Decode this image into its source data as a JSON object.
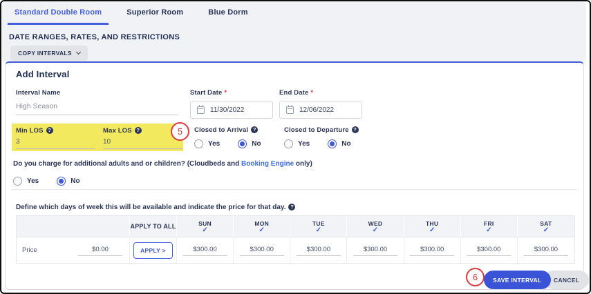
{
  "colors": {
    "accent": "#3d58d7",
    "highlight": "#f3e95f",
    "annotation_red": "#dd3a3c"
  },
  "ui": {
    "required_marker": "*",
    "help_glyph": "?",
    "check_glyph": "✓"
  },
  "tabs": [
    {
      "label": "Standard Double Room",
      "active": true
    },
    {
      "label": "Superior Room",
      "active": false
    },
    {
      "label": "Blue Dorm",
      "active": false
    }
  ],
  "header": {
    "section_title": "DATE RANGES, RATES, AND RESTRICTIONS",
    "copy_intervals_label": "COPY INTERVALS"
  },
  "panel": {
    "title": "Add Interval",
    "interval_name": {
      "label": "Interval Name",
      "value": "High Season"
    },
    "start_date": {
      "label": "Start Date",
      "value": "11/30/2022"
    },
    "end_date": {
      "label": "End Date",
      "value": "12/06/2022"
    },
    "min_los": {
      "label": "Min LOS",
      "value": "3"
    },
    "max_los": {
      "label": "Max LOS",
      "value": "10"
    },
    "closed_to_arrival": {
      "label": "Closed to Arrival",
      "yes": "Yes",
      "no": "No",
      "selected": "No"
    },
    "closed_to_departure": {
      "label": "Closed to Departure",
      "yes": "Yes",
      "no": "No",
      "selected": "No"
    },
    "extra_charge_question": {
      "text_before": "Do you charge for additional adults and or children? (Cloudbeds and ",
      "link_text": "Booking Engine",
      "text_after": " only)",
      "yes": "Yes",
      "no": "No",
      "selected": "No"
    },
    "days_note": "Define which days of week this will be available and indicate the price for that day.",
    "rate_table": {
      "apply_to_all_header": "APPLY TO ALL",
      "price_row_label": "Price",
      "base_price": "$0.00",
      "apply_button_label": "APPLY >",
      "days": [
        {
          "label": "SUN",
          "checked": true,
          "price": "$300.00"
        },
        {
          "label": "MON",
          "checked": true,
          "price": "$300.00"
        },
        {
          "label": "TUE",
          "checked": true,
          "price": "$300.00"
        },
        {
          "label": "WED",
          "checked": true,
          "price": "$300.00"
        },
        {
          "label": "THU",
          "checked": true,
          "price": "$300.00"
        },
        {
          "label": "FRI",
          "checked": true,
          "price": "$300.00"
        },
        {
          "label": "SAT",
          "checked": true,
          "price": "$300.00"
        }
      ]
    },
    "save_label": "SAVE INTERVAL",
    "cancel_label": "CANCEL"
  },
  "annotations": {
    "step_5": "5",
    "step_6": "6"
  }
}
